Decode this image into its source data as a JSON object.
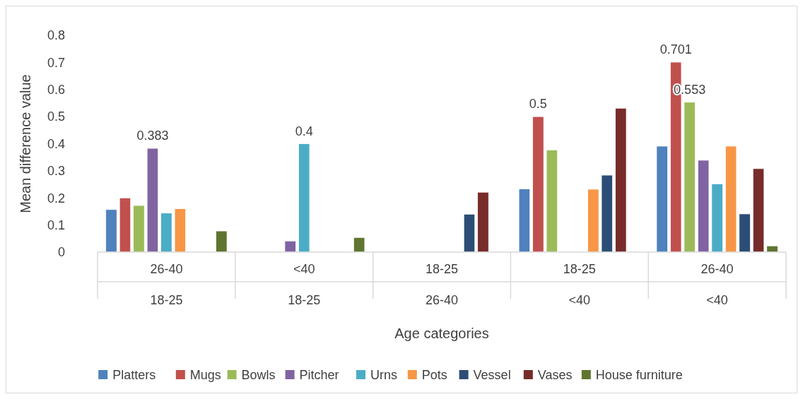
{
  "chart_data": {
    "type": "bar",
    "xlabel": "Age categories",
    "ylabel": "Mean difference value",
    "categories": [
      "26-40\n18-25",
      "<40\n18-25",
      "18-25\n26-40",
      "18-25\n<40",
      "26-40\n<40"
    ],
    "ylim": [
      0,
      0.8
    ],
    "yticks": [
      {
        "value": 0,
        "label": "0"
      },
      0.1,
      0.2,
      0.3,
      0.4,
      0.5,
      0.6,
      0.7,
      0.8
    ],
    "grid": false,
    "legend": "bottom",
    "series": [
      {
        "name": "Platters",
        "color": "#4f81bd",
        "values": [
          0.157,
          null,
          null,
          0.233,
          0.391
        ]
      },
      {
        "name": "Mugs",
        "color": "#c0504d",
        "values": [
          0.2,
          null,
          null,
          0.5,
          0.701
        ],
        "value_labels": [
          null,
          null,
          null,
          "0.5",
          "0.701"
        ]
      },
      {
        "name": "Bowls",
        "color": "#9bbb59",
        "values": [
          0.172,
          null,
          null,
          0.377,
          0.553
        ],
        "value_labels": [
          null,
          null,
          null,
          null,
          "0.553"
        ]
      },
      {
        "name": "Pitcher",
        "color": "#8064a2",
        "values": [
          0.383,
          0.041,
          null,
          null,
          0.339
        ],
        "value_labels": [
          "0.383",
          null,
          null,
          null,
          null
        ]
      },
      {
        "name": "Urns",
        "color": "#4bacc6",
        "values": [
          0.144,
          0.4,
          null,
          null,
          0.252
        ],
        "value_labels": [
          null,
          "0.4",
          null,
          null,
          null
        ]
      },
      {
        "name": "Pots",
        "color": "#f79646",
        "values": [
          0.16,
          null,
          null,
          0.232,
          0.391
        ]
      },
      {
        "name": "Vessel",
        "color": "#2c4d75",
        "values": [
          null,
          null,
          0.14,
          0.284,
          0.141
        ]
      },
      {
        "name": "Vases",
        "color": "#772c2a",
        "values": [
          null,
          null,
          0.221,
          0.531,
          0.308
        ]
      },
      {
        "name": "House furniture",
        "color": "#5f7530",
        "values": [
          0.078,
          0.054,
          null,
          null,
          0.023
        ]
      }
    ]
  }
}
